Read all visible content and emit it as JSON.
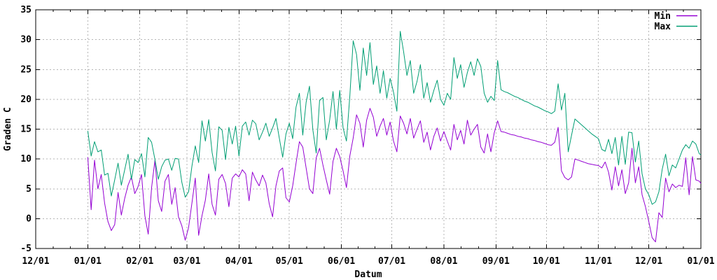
{
  "chart_data": {
    "type": "line",
    "title": "",
    "xlabel": "Datum",
    "ylabel": "Graden C",
    "grid": true,
    "legend_position": "top-right",
    "xlim": [
      0,
      396
    ],
    "ylim": [
      -5,
      35
    ],
    "yticks": [
      -5,
      0,
      5,
      10,
      15,
      20,
      25,
      30,
      35
    ],
    "xticks": [
      {
        "label": "12/01",
        "day": 0
      },
      {
        "label": "01/01",
        "day": 31
      },
      {
        "label": "02/01",
        "day": 62
      },
      {
        "label": "03/01",
        "day": 90
      },
      {
        "label": "04/01",
        "day": 121
      },
      {
        "label": "05/01",
        "day": 151
      },
      {
        "label": "06/01",
        "day": 182
      },
      {
        "label": "07/01",
        "day": 212
      },
      {
        "label": "08/01",
        "day": 243
      },
      {
        "label": "09/01",
        "day": 274
      },
      {
        "label": "10/01",
        "day": 304
      },
      {
        "label": "11/01",
        "day": 335
      },
      {
        "label": "12/01",
        "day": 365
      },
      {
        "label": "01/01",
        "day": 396
      }
    ],
    "x_unit": "days since first 12/01 tick; data runs 01/01 to 01/01",
    "x": [
      31,
      33,
      35,
      37,
      39,
      41,
      43,
      45,
      47,
      49,
      51,
      53,
      55,
      57,
      59,
      61,
      63,
      65,
      67,
      69,
      71,
      73,
      75,
      77,
      79,
      81,
      83,
      85,
      87,
      89,
      91,
      93,
      95,
      97,
      99,
      101,
      103,
      105,
      107,
      109,
      111,
      113,
      115,
      117,
      119,
      121,
      123,
      125,
      127,
      129,
      131,
      133,
      135,
      137,
      139,
      141,
      143,
      145,
      147,
      149,
      151,
      153,
      155,
      157,
      159,
      161,
      163,
      165,
      167,
      169,
      171,
      173,
      175,
      177,
      179,
      181,
      183,
      185,
      187,
      189,
      191,
      193,
      195,
      197,
      199,
      201,
      203,
      205,
      207,
      209,
      211,
      213,
      215,
      217,
      219,
      221,
      223,
      225,
      227,
      229,
      231,
      233,
      235,
      237,
      239,
      241,
      243,
      245,
      247,
      249,
      251,
      253,
      255,
      257,
      259,
      261,
      263,
      265,
      267,
      269,
      271,
      273,
      275,
      277,
      279,
      281,
      283,
      285,
      287,
      289,
      291,
      293,
      295,
      297,
      299,
      301,
      303,
      305,
      307,
      309,
      311,
      313,
      315,
      317,
      319,
      321,
      323,
      325,
      327,
      329,
      331,
      333,
      335,
      337,
      339,
      341,
      343,
      345,
      347,
      349,
      351,
      353,
      355,
      357,
      359,
      361,
      363,
      365,
      367,
      369,
      371,
      373,
      375,
      377,
      379,
      381,
      383,
      385,
      387,
      389,
      391,
      393,
      395,
      396
    ],
    "series": [
      {
        "name": "Min",
        "color": "#9400d3",
        "values": [
          10.3,
          1.5,
          9.8,
          5.0,
          7.4,
          2.6,
          -0.5,
          -2.0,
          -1.0,
          4.4,
          0.6,
          3.4,
          5.6,
          7.0,
          4.2,
          5.4,
          7.4,
          0.5,
          -2.6,
          5.2,
          9.8,
          3.0,
          1.2,
          6.3,
          7.4,
          2.4,
          5.2,
          0.3,
          -1.2,
          -3.6,
          -1.5,
          2.6,
          6.8,
          -2.8,
          0.5,
          3.1,
          7.5,
          2.4,
          0.6,
          6.6,
          7.4,
          5.9,
          2.0,
          6.8,
          7.5,
          7.0,
          8.2,
          7.5,
          3.0,
          7.8,
          6.5,
          5.5,
          7.3,
          6.0,
          2.5,
          0.3,
          5.5,
          8.0,
          8.5,
          3.5,
          2.8,
          5.5,
          9.3,
          12.9,
          12.0,
          8.5,
          5.0,
          4.2,
          10.2,
          11.8,
          9.0,
          6.5,
          4.1,
          9.6,
          11.8,
          10.4,
          8.0,
          5.2,
          10.5,
          13.5,
          17.4,
          16.0,
          12.0,
          16.5,
          18.5,
          17.0,
          13.8,
          15.5,
          16.8,
          14.0,
          16.2,
          13.0,
          11.2,
          17.2,
          16.0,
          14.2,
          16.8,
          13.5,
          15.0,
          16.4,
          12.8,
          14.5,
          11.5,
          13.8,
          15.2,
          13.0,
          14.6,
          13.0,
          11.5,
          15.8,
          13.2,
          14.8,
          12.5,
          16.5,
          14.0,
          15.0,
          15.8,
          12.0,
          11.0,
          14.2,
          11.2,
          14.4,
          16.4,
          14.6,
          14.5,
          14.3,
          14.1,
          14.0,
          13.8,
          13.7,
          13.5,
          13.4,
          13.2,
          13.1,
          12.9,
          12.8,
          12.6,
          12.4,
          12.3,
          12.8,
          15.3,
          8.0,
          6.9,
          6.5,
          7.0,
          10.0,
          9.8,
          9.6,
          9.4,
          9.2,
          9.1,
          9.0,
          8.9,
          8.5,
          9.5,
          7.8,
          4.8,
          8.7,
          5.5,
          8.2,
          4.2,
          6.0,
          11.8,
          6.0,
          8.7,
          4.0,
          2.0,
          -0.5,
          -3.2,
          -3.9,
          1.0,
          0.2,
          6.8,
          4.5,
          5.8,
          5.2,
          5.6,
          5.4,
          10.2,
          4.0,
          10.4,
          6.5,
          6.3,
          5.9
        ]
      },
      {
        "name": "Max",
        "color": "#009e73",
        "values": [
          14.7,
          10.5,
          12.9,
          11.2,
          11.5,
          7.3,
          7.6,
          3.8,
          6.5,
          9.3,
          5.6,
          8.2,
          10.8,
          6.6,
          9.9,
          9.4,
          10.9,
          7.0,
          13.6,
          12.8,
          9.9,
          6.6,
          8.7,
          9.8,
          10.0,
          8.1,
          10.1,
          10.0,
          6.1,
          3.6,
          4.5,
          8.8,
          12.2,
          9.4,
          16.4,
          13.0,
          16.6,
          11.1,
          8.0,
          15.4,
          14.8,
          9.9,
          15.3,
          12.5,
          15.5,
          10.5,
          15.5,
          16.2,
          14.0,
          16.5,
          15.9,
          13.2,
          14.5,
          16.0,
          13.8,
          15.2,
          16.8,
          13.5,
          10.3,
          14.2,
          16.0,
          13.4,
          18.7,
          21.0,
          14.0,
          19.5,
          22.2,
          14.9,
          11.0,
          19.8,
          20.3,
          13.2,
          16.5,
          21.3,
          15.0,
          21.5,
          15.2,
          13.0,
          20.5,
          29.8,
          27.5,
          21.5,
          28.6,
          24.0,
          29.5,
          22.5,
          25.6,
          21.0,
          24.8,
          20.2,
          23.5,
          21.2,
          18.0,
          31.4,
          28.0,
          24.0,
          26.5,
          21.0,
          23.0,
          25.8,
          20.2,
          22.8,
          19.5,
          21.5,
          23.2,
          20.0,
          19.0,
          21.0,
          20.0,
          27.0,
          23.5,
          25.8,
          22.0,
          24.5,
          26.3,
          24.0,
          26.8,
          25.5,
          21.0,
          19.5,
          20.5,
          19.8,
          26.5,
          21.6,
          21.3,
          21.1,
          20.8,
          20.5,
          20.3,
          20.0,
          19.7,
          19.5,
          19.2,
          18.9,
          18.7,
          18.4,
          18.1,
          17.9,
          17.6,
          18.0,
          22.6,
          18.2,
          21.0,
          11.2,
          14.0,
          16.7,
          16.2,
          15.7,
          15.2,
          14.7,
          14.2,
          13.8,
          13.4,
          11.6,
          11.3,
          13.3,
          10.9,
          13.6,
          9.0,
          13.8,
          9.1,
          14.5,
          14.4,
          9.5,
          13.0,
          7.5,
          5.0,
          4.0,
          2.4,
          2.8,
          4.5,
          8.3,
          10.8,
          7.2,
          9.0,
          8.5,
          10.0,
          11.5,
          12.4,
          11.8,
          13.0,
          12.5,
          10.9,
          10.7
        ]
      }
    ],
    "legend": [
      {
        "label": "Min",
        "color": "#9400d3"
      },
      {
        "label": "Max",
        "color": "#009e73"
      }
    ],
    "style": {
      "background": "#ffffff",
      "border_color": "#000000",
      "grid_color": "#b5b5b5",
      "text_color": "#000000"
    }
  }
}
